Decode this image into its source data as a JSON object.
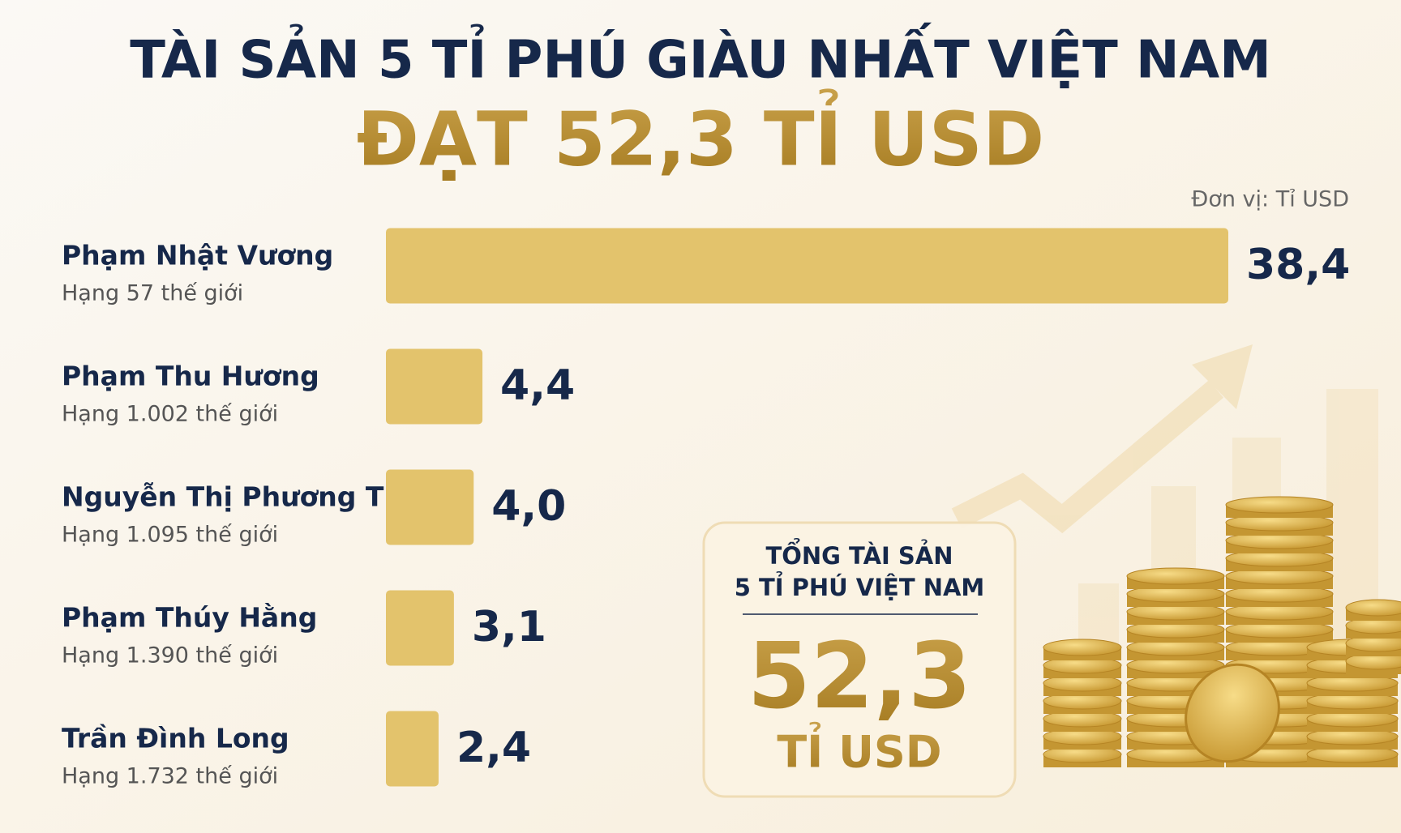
{
  "chart_data": {
    "type": "bar",
    "orientation": "horizontal",
    "title": "TÀI SẢN 5 TỈ PHÚ GIÀU NHẤT VIỆT NAM",
    "subtitle": "ĐẠT 52,3 TỈ USD",
    "unit_label": "Đơn vị: Tỉ USD",
    "categories": [
      "Phạm Nhật Vương",
      "Phạm Thu Hương",
      "Nguyễn Thị Phương Thảo",
      "Phạm Thúy Hằng",
      "Trần Đình Long"
    ],
    "ranks": [
      "Hạng 57 thế giới",
      "Hạng 1.002 thế giới",
      "Hạng 1.095 thế giới",
      "Hạng 1.390 thế giới",
      "Hạng 1.732 thế giới"
    ],
    "values": [
      38.4,
      4.4,
      4.0,
      3.1,
      2.4
    ],
    "value_labels": [
      "38,4",
      "4,4",
      "4,0",
      "3,1",
      "2,4"
    ],
    "color": "#e3c36c",
    "total_title": [
      "TỔNG TÀI SẢN",
      "5 TỈ PHÚ VIỆT NAM"
    ],
    "total": {
      "value": 52.3,
      "label": "52,3"
    },
    "total_unit": "TỈ USD"
  }
}
